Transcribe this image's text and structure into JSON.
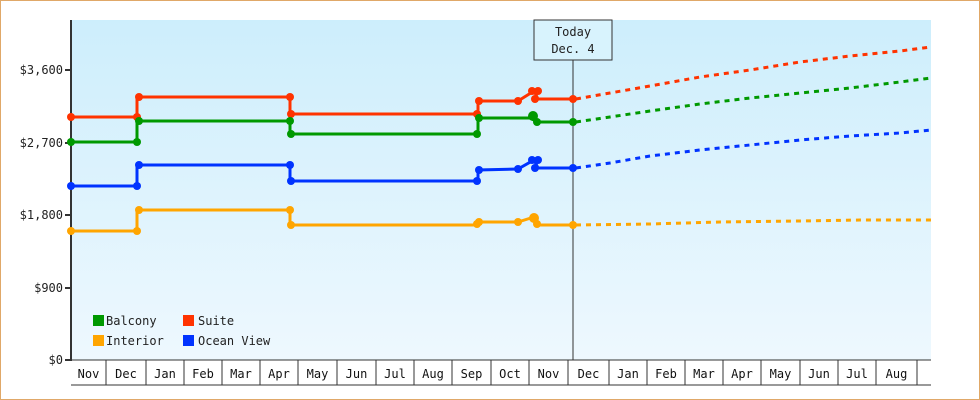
{
  "chart_data": {
    "type": "line",
    "title": "",
    "xlabel": "",
    "ylabel": "",
    "ylim": [
      0,
      4200
    ],
    "y_ticks": [
      {
        "value": 0,
        "label": "$0"
      },
      {
        "value": 900,
        "label": "$900"
      },
      {
        "value": 1800,
        "label": "$1,800"
      },
      {
        "value": 2700,
        "label": "$2,700"
      },
      {
        "value": 3600,
        "label": "$3,600"
      }
    ],
    "x_months": [
      "Nov",
      "Dec",
      "Jan",
      "Feb",
      "Mar",
      "Apr",
      "May",
      "Jun",
      "Jul",
      "Aug",
      "Sep",
      "Oct",
      "Nov",
      "Dec",
      "Jan",
      "Feb",
      "Mar",
      "Apr",
      "May",
      "Jun",
      "Jul",
      "Aug"
    ],
    "today_marker": {
      "line1": "Today",
      "line2": "Dec. 4"
    },
    "legend": [
      {
        "name": "Balcony",
        "color": "#009900"
      },
      {
        "name": "Suite",
        "color": "#ff3300"
      },
      {
        "name": "Interior",
        "color": "#ffa500"
      },
      {
        "name": "Ocean View",
        "color": "#0033ff"
      }
    ],
    "series": [
      {
        "name": "Suite",
        "color": "#ff3300",
        "historical": [
          [
            "Nov start",
            3020
          ],
          [
            "Dec 5",
            3020
          ],
          [
            "Dec 5",
            3265
          ],
          [
            "Apr 28",
            3265
          ],
          [
            "Apr 28",
            3055
          ],
          [
            "Sep 10",
            3055
          ],
          [
            "Sep 10",
            3215
          ],
          [
            "Oct 25",
            3215
          ],
          [
            "Nov 5",
            3340
          ],
          [
            "Nov 7",
            3240
          ],
          [
            "Dec 4",
            3240
          ]
        ],
        "forecast": [
          [
            "Dec 4",
            3240
          ],
          [
            "Aug end",
            3885
          ]
        ]
      },
      {
        "name": "Balcony",
        "color": "#009900",
        "historical": [
          [
            "Nov start",
            2705
          ],
          [
            "Dec 5",
            2705
          ],
          [
            "Dec 5",
            2965
          ],
          [
            "Apr 28",
            2965
          ],
          [
            "Apr 28",
            2805
          ],
          [
            "Sep 10",
            2805
          ],
          [
            "Sep 10",
            3005
          ],
          [
            "Nov 5",
            3040
          ],
          [
            "Nov 7",
            2955
          ],
          [
            "Dec 4",
            2955
          ]
        ],
        "forecast": [
          [
            "Dec 4",
            2955
          ],
          [
            "Aug end",
            3500
          ]
        ]
      },
      {
        "name": "Ocean View",
        "color": "#0033ff",
        "historical": [
          [
            "Nov start",
            2160
          ],
          [
            "Dec 5",
            2160
          ],
          [
            "Dec 5",
            2420
          ],
          [
            "Apr 28",
            2420
          ],
          [
            "Apr 28",
            2220
          ],
          [
            "Sep 10",
            2220
          ],
          [
            "Sep 10",
            2360
          ],
          [
            "Oct 25",
            2370
          ],
          [
            "Nov 5",
            2485
          ],
          [
            "Nov 7",
            2385
          ],
          [
            "Dec 4",
            2385
          ]
        ],
        "forecast": [
          [
            "Dec 4",
            2385
          ],
          [
            "Aug end",
            2855
          ]
        ]
      },
      {
        "name": "Interior",
        "color": "#ffa500",
        "historical": [
          [
            "Nov start",
            1600
          ],
          [
            "Dec 5",
            1600
          ],
          [
            "Dec 5",
            1860
          ],
          [
            "Apr 28",
            1860
          ],
          [
            "Apr 28",
            1675
          ],
          [
            "Sep 10",
            1675
          ],
          [
            "Sep 10",
            1700
          ],
          [
            "Oct 25",
            1710
          ],
          [
            "Nov 5",
            1775
          ],
          [
            "Nov 7",
            1675
          ],
          [
            "Dec 4",
            1675
          ]
        ],
        "forecast": [
          [
            "Dec 4",
            1675
          ],
          [
            "Aug end",
            1740
          ]
        ]
      }
    ],
    "grid": false,
    "legend_position": "bottom-left inside plot"
  }
}
